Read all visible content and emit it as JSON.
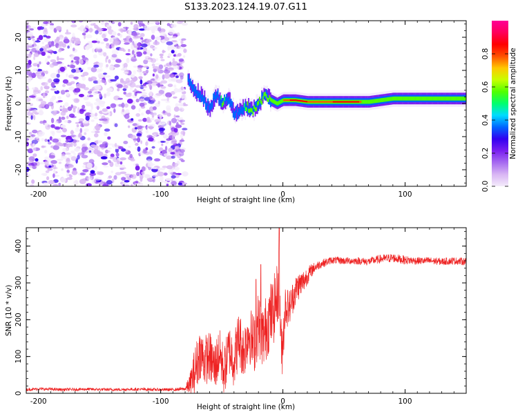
{
  "title": "S133.2023.124.19.07.G11",
  "colors": {
    "snr_line": "#ee2222",
    "rainbow": [
      "#f4ecfb",
      "#d9b6f4",
      "#a76bf0",
      "#7a1ff0",
      "#3200f0",
      "#0064ff",
      "#00dcff",
      "#00ff6e",
      "#50ff00",
      "#c8ff00",
      "#ffc800",
      "#ff5000",
      "#ff0000",
      "#ff005a",
      "#ff0096"
    ]
  },
  "chart_data": [
    {
      "type": "heatmap",
      "title": "S133.2023.124.19.07.G11",
      "xlabel": "Height of straight line (km)",
      "ylabel": "Frequency (Hz)",
      "xlim": [
        -210,
        150
      ],
      "ylim": [
        -25,
        25
      ],
      "xticks": [
        -200,
        -100,
        0,
        100
      ],
      "xtick_labels": [
        "-200",
        "-100",
        "0",
        "100"
      ],
      "yticks": [
        -20,
        -10,
        0,
        10,
        20
      ],
      "ytick_labels": [
        "-20",
        "-10",
        "0",
        "10",
        "20"
      ],
      "colorbar": {
        "label": "Normalized spectral amplitude",
        "range": [
          0,
          1
        ],
        "ticks": [
          0,
          0.2,
          0.4,
          0.6,
          0.8
        ],
        "tick_labels": [
          "0.0",
          "0.2",
          "0.4",
          "0.6",
          "0.8"
        ]
      },
      "noise_region_x": [
        -210,
        -80
      ],
      "ridge": [
        {
          "x": -78,
          "freq": 7,
          "amp": 0.45
        },
        {
          "x": -72,
          "freq": 4,
          "amp": 0.4
        },
        {
          "x": -66,
          "freq": 2,
          "amp": 0.45
        },
        {
          "x": -60,
          "freq": -2,
          "amp": 0.5
        },
        {
          "x": -55,
          "freq": 3,
          "amp": 0.4
        },
        {
          "x": -50,
          "freq": 0,
          "amp": 0.55
        },
        {
          "x": -45,
          "freq": 2,
          "amp": 0.45
        },
        {
          "x": -40,
          "freq": -3,
          "amp": 0.5
        },
        {
          "x": -35,
          "freq": -2,
          "amp": 0.45
        },
        {
          "x": -30,
          "freq": -1,
          "amp": 0.55
        },
        {
          "x": -25,
          "freq": -2,
          "amp": 0.6
        },
        {
          "x": -20,
          "freq": 0,
          "amp": 0.55
        },
        {
          "x": -15,
          "freq": 3,
          "amp": 0.6
        },
        {
          "x": -10,
          "freq": 1,
          "amp": 0.6
        },
        {
          "x": -5,
          "freq": 0,
          "amp": 0.7
        },
        {
          "x": 0,
          "freq": 1,
          "amp": 0.75
        },
        {
          "x": 10,
          "freq": 1,
          "amp": 0.85
        },
        {
          "x": 20,
          "freq": 0.5,
          "amp": 0.8
        },
        {
          "x": 30,
          "freq": 0.5,
          "amp": 0.75
        },
        {
          "x": 40,
          "freq": 0.5,
          "amp": 0.8
        },
        {
          "x": 50,
          "freq": 0.5,
          "amp": 0.85
        },
        {
          "x": 60,
          "freq": 0.5,
          "amp": 0.85
        },
        {
          "x": 70,
          "freq": 0.5,
          "amp": 0.6
        },
        {
          "x": 80,
          "freq": 1,
          "amp": 0.6
        },
        {
          "x": 90,
          "freq": 1.5,
          "amp": 0.7
        },
        {
          "x": 100,
          "freq": 1.5,
          "amp": 0.6
        },
        {
          "x": 110,
          "freq": 1.5,
          "amp": 0.55
        },
        {
          "x": 120,
          "freq": 1.5,
          "amp": 0.55
        },
        {
          "x": 130,
          "freq": 1.5,
          "amp": 0.55
        },
        {
          "x": 140,
          "freq": 1.5,
          "amp": 0.55
        },
        {
          "x": 150,
          "freq": 1.5,
          "amp": 0.55
        }
      ]
    },
    {
      "type": "line",
      "xlabel": "Height of straight line (km)",
      "ylabel": "SNR (10 * v/v)",
      "xlim": [
        -210,
        150
      ],
      "ylim": [
        0,
        450
      ],
      "xticks": [
        -200,
        -100,
        0,
        100
      ],
      "xtick_labels": [
        "-200",
        "-100",
        "0",
        "100"
      ],
      "yticks": [
        0,
        100,
        200,
        300,
        400
      ],
      "ytick_labels": [
        "0",
        "100",
        "200",
        "300",
        "400"
      ],
      "series": [
        {
          "x": [
            -210,
            -200,
            -180,
            -160,
            -140,
            -120,
            -100,
            -90,
            -80,
            -76,
            -72,
            -68,
            -64,
            -60,
            -56,
            -52,
            -48,
            -44,
            -40,
            -36,
            -32,
            -28,
            -24,
            -20,
            -16,
            -12,
            -8,
            -5,
            -3,
            -1,
            2,
            5,
            8,
            12,
            16,
            20,
            25,
            30,
            40,
            50,
            60,
            70,
            80,
            90,
            100,
            110,
            120,
            130,
            140,
            150
          ],
          "y": [
            10,
            12,
            10,
            11,
            10,
            11,
            10,
            10,
            12,
            25,
            60,
            110,
            90,
            100,
            70,
            110,
            60,
            120,
            90,
            150,
            110,
            170,
            130,
            190,
            150,
            200,
            220,
            260,
            300,
            100,
            240,
            230,
            260,
            290,
            300,
            320,
            340,
            350,
            362,
            360,
            360,
            358,
            365,
            368,
            362,
            360,
            360,
            358,
            360,
            358
          ],
          "noise": [
            4,
            4,
            4,
            4,
            4,
            4,
            4,
            4,
            5,
            30,
            70,
            70,
            70,
            70,
            70,
            70,
            70,
            70,
            75,
            80,
            75,
            80,
            85,
            90,
            90,
            95,
            95,
            90,
            90,
            80,
            60,
            50,
            45,
            40,
            35,
            25,
            15,
            12,
            10,
            10,
            10,
            10,
            12,
            12,
            12,
            10,
            10,
            10,
            10,
            10
          ],
          "spikes": [
            [
              -3,
              450
            ],
            [
              -18,
              350
            ],
            [
              -22,
              310
            ]
          ]
        }
      ]
    }
  ]
}
